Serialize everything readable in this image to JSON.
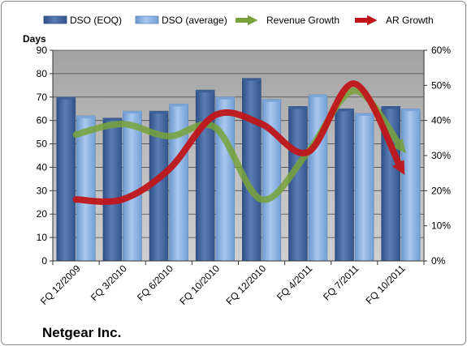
{
  "chart_data": {
    "type": "bar",
    "company": "Netgear Inc.",
    "ylabel_left": "Days",
    "categories": [
      "FQ 12/2009",
      "FQ 3/2010",
      "FQ 6/2010",
      "FQ 10/2010",
      "FQ 12/2010",
      "FQ 4/2011",
      "FQ 7/2011",
      "FQ 10/2011"
    ],
    "ylim_left": [
      0,
      90
    ],
    "yticks_left": [
      "0",
      "10",
      "20",
      "30",
      "40",
      "50",
      "60",
      "70",
      "80",
      "90"
    ],
    "ylim_right": [
      0,
      0.6
    ],
    "yticks_right": [
      "0%",
      "10%",
      "20%",
      "30%",
      "40%",
      "50%",
      "60%"
    ],
    "grid": true,
    "legend_position": "top",
    "series": [
      {
        "name": "DSO (EOQ)",
        "type": "bar",
        "axis": "left",
        "color": "#4f6fa6",
        "values": [
          70,
          61,
          64,
          73,
          78,
          66,
          65,
          66
        ]
      },
      {
        "name": "DSO (average)",
        "type": "bar",
        "axis": "left",
        "color": "#8db4e2",
        "values": [
          62,
          64,
          67,
          70,
          69,
          71,
          63,
          65
        ]
      },
      {
        "name": "Revenue Growth",
        "type": "line",
        "axis": "right",
        "color": "#77a33a",
        "values": [
          0.36,
          0.39,
          0.355,
          0.38,
          0.175,
          0.31,
          0.485,
          0.325
        ]
      },
      {
        "name": "AR Growth",
        "type": "line",
        "axis": "right",
        "color": "#c0161b",
        "values": [
          0.175,
          0.175,
          0.26,
          0.415,
          0.39,
          0.31,
          0.505,
          0.265
        ]
      }
    ]
  },
  "colors": {
    "plot_background": "#aeaeae",
    "gridline": "#4a4a4a"
  }
}
